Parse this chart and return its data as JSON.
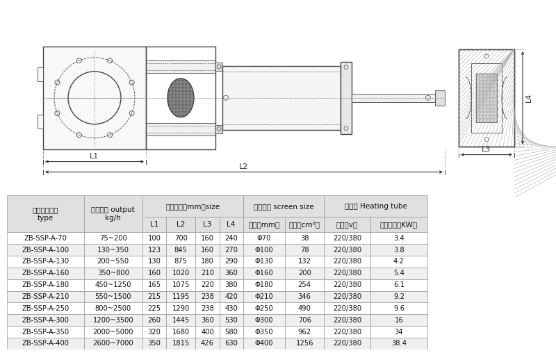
{
  "headers_row1_col0": "产品规格型号\ntype",
  "headers_row1_col1": "适用产量 output\nkg/h",
  "headers_row1_col25": "轮廓尺寸（mm）size",
  "headers_row1_col67": "滤网尺寸 screen size",
  "headers_row1_col89": "加热器 Heating tube",
  "headers_row2": [
    "L1",
    "L2",
    "L3",
    "L4",
    "直径（mm）",
    "面积（cm²）",
    "电压（v）",
    "加热功率（KW）"
  ],
  "rows": [
    [
      "ZB-SSP-A-70",
      "75~200",
      "100",
      "700",
      "160",
      "240",
      "Φ70",
      "38",
      "220/380",
      "3.4"
    ],
    [
      "ZB-SSP-A-100",
      "130~350",
      "123",
      "845",
      "160",
      "270",
      "Φ100",
      "78",
      "220/380",
      "3.8"
    ],
    [
      "ZB-SSP-A-130",
      "200~550",
      "130",
      "875",
      "180",
      "290",
      "Φ130",
      "132",
      "220/380",
      "4.2"
    ],
    [
      "ZB-SSP-A-160",
      "350~800",
      "160",
      "1020",
      "210",
      "360",
      "Φ160",
      "200",
      "220/380",
      "5.4"
    ],
    [
      "ZB-SSP-A-180",
      "450~1250",
      "165",
      "1075",
      "220",
      "380",
      "Φ180",
      "254",
      "220/380",
      "6.1"
    ],
    [
      "ZB-SSP-A-210",
      "550~1500",
      "215",
      "1195",
      "238",
      "420",
      "Φ210",
      "346",
      "220/380",
      "9.2"
    ],
    [
      "ZB-SSP-A-250",
      "800~2500",
      "225",
      "1290",
      "238",
      "430",
      "Φ250",
      "490",
      "220/380",
      "9.6"
    ],
    [
      "ZB-SSP-A-300",
      "1200~3500",
      "260",
      "1445",
      "360",
      "530",
      "Φ300",
      "706",
      "220/380",
      "16"
    ],
    [
      "ZB-SSP-A-350",
      "2000~5000",
      "320",
      "1680",
      "400",
      "580",
      "Φ350",
      "962",
      "220/380",
      "34"
    ],
    [
      "ZB-SSP-A-400",
      "2600~7000",
      "350",
      "1815",
      "426",
      "630",
      "Φ400",
      "1256",
      "220/380",
      "38.4"
    ]
  ],
  "header_bg": "#e0e0e0",
  "row_bg_alt": "#efefef",
  "row_bg_main": "#ffffff",
  "border_color": "#999999",
  "text_color": "#111111",
  "font_size": 7.5
}
